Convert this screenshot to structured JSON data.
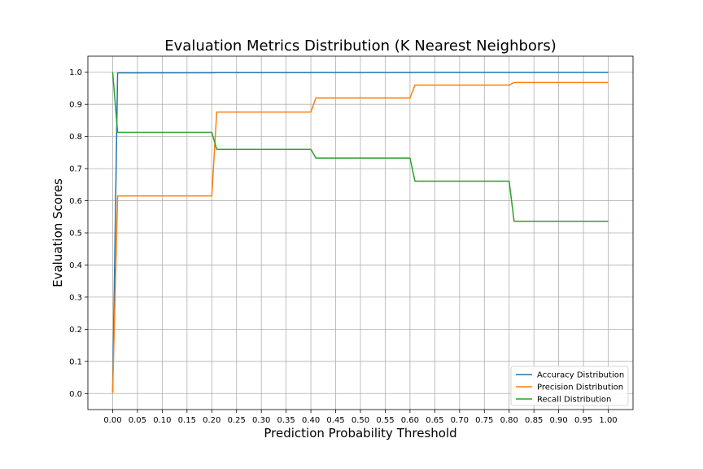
{
  "chart_data": {
    "type": "line",
    "title": "Evaluation Metrics Distribution (K Nearest Neighbors)",
    "xlabel": "Prediction Probability Threshold",
    "ylabel": "Evaluation Scores",
    "xlim": [
      -0.05,
      1.05
    ],
    "ylim": [
      -0.05,
      1.05
    ],
    "grid": true,
    "legend_position": "lower-right",
    "xticks": [
      0.0,
      0.05,
      0.1,
      0.15,
      0.2,
      0.25,
      0.3,
      0.35,
      0.4,
      0.45,
      0.5,
      0.55,
      0.6,
      0.65,
      0.7,
      0.75,
      0.8,
      0.85,
      0.9,
      0.95,
      1.0
    ],
    "xtick_labels": [
      "0.00",
      "0.05",
      "0.10",
      "0.15",
      "0.20",
      "0.25",
      "0.30",
      "0.35",
      "0.40",
      "0.45",
      "0.50",
      "0.55",
      "0.60",
      "0.65",
      "0.70",
      "0.75",
      "0.80",
      "0.85",
      "0.90",
      "0.95",
      "1.00"
    ],
    "yticks": [
      0.0,
      0.1,
      0.2,
      0.3,
      0.4,
      0.5,
      0.6,
      0.7,
      0.8,
      0.9,
      1.0
    ],
    "ytick_labels": [
      "0.0",
      "0.1",
      "0.2",
      "0.3",
      "0.4",
      "0.5",
      "0.6",
      "0.7",
      "0.8",
      "0.9",
      "1.0"
    ],
    "series": [
      {
        "name": "Accuracy Distribution",
        "color": "#1f77b4",
        "x": [
          0.0,
          0.01,
          0.2,
          0.21,
          0.4,
          0.41,
          0.6,
          0.61,
          0.8,
          0.81,
          1.0
        ],
        "y": [
          0.002,
          0.998,
          0.9985,
          0.999,
          0.999,
          0.9992,
          0.9993,
          0.9995,
          0.9995,
          0.9996,
          0.9996
        ]
      },
      {
        "name": "Precision Distribution",
        "color": "#ff7f0e",
        "x": [
          0.0,
          0.01,
          0.2,
          0.21,
          0.4,
          0.41,
          0.6,
          0.61,
          0.8,
          0.81,
          1.0
        ],
        "y": [
          0.002,
          0.615,
          0.615,
          0.876,
          0.876,
          0.92,
          0.92,
          0.96,
          0.96,
          0.968,
          0.968
        ]
      },
      {
        "name": "Recall Distribution",
        "color": "#2ca02c",
        "x": [
          0.0,
          0.01,
          0.2,
          0.21,
          0.4,
          0.41,
          0.6,
          0.61,
          0.8,
          0.81,
          1.0
        ],
        "y": [
          1.0,
          0.813,
          0.813,
          0.76,
          0.76,
          0.733,
          0.733,
          0.661,
          0.661,
          0.536,
          0.536
        ]
      }
    ]
  }
}
